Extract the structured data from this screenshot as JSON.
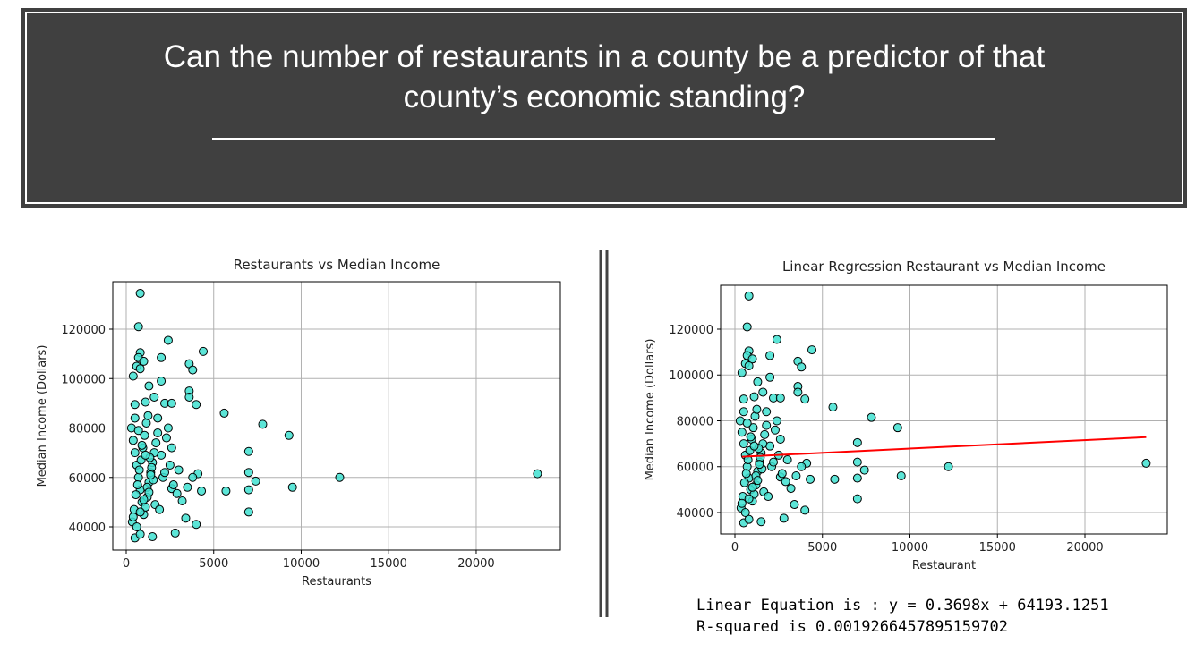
{
  "header": {
    "title": "Can the number of restaurants in a county be a predictor of that county’s economic standing?"
  },
  "chart_data": [
    {
      "type": "scatter",
      "title": "Restaurants vs Median Income",
      "x_label": "Restaurants",
      "y_label": "Median Income (Dollars)",
      "color": "#40e0d0",
      "edgecolor": "#000000",
      "grid": true,
      "xlim": [
        -767,
        24810
      ],
      "ylim": [
        30590,
        139190
      ],
      "xticks": [
        0,
        5000,
        10000,
        15000,
        20000
      ],
      "yticks": [
        40000,
        60000,
        80000,
        100000,
        120000
      ],
      "x": [
        800,
        700,
        2400,
        4400,
        800,
        700,
        1000,
        2000,
        3600,
        3800,
        600,
        800,
        400,
        1300,
        2000,
        3600,
        3600,
        1600,
        2200,
        2600,
        4000,
        1100,
        500,
        5600,
        7800,
        9300,
        7000,
        7000,
        7400,
        7000,
        7000,
        5700,
        9500,
        12200,
        23500,
        4300,
        4100,
        3800,
        4000,
        3400,
        2800,
        1500,
        500,
        800,
        3000,
        2600,
        2400,
        2300,
        1800,
        2000,
        2600,
        3200,
        3500,
        2900,
        300,
        400,
        500,
        600,
        700,
        800,
        900,
        1000,
        1100,
        1200,
        1300,
        1400,
        1500,
        1600,
        1700,
        1800,
        350,
        450,
        550,
        650,
        750,
        850,
        950,
        1050,
        1150,
        1250,
        1350,
        1450,
        1550,
        1650,
        400,
        600,
        800,
        1000,
        1200,
        1400,
        500,
        700,
        900,
        1100,
        1300,
        2100,
        2200,
        2500,
        2700,
        1900
      ],
      "values": [
        134500,
        121000,
        115500,
        111000,
        110500,
        108500,
        107000,
        108500,
        106000,
        103500,
        105000,
        104000,
        101000,
        97000,
        99000,
        95000,
        92500,
        92500,
        90000,
        90000,
        89500,
        90500,
        89500,
        86000,
        81500,
        77000,
        70500,
        62000,
        58500,
        55000,
        46000,
        54500,
        56000,
        60000,
        61500,
        54500,
        61500,
        60000,
        41000,
        43500,
        37500,
        36000,
        35500,
        37000,
        63000,
        72000,
        80000,
        76000,
        84000,
        69000,
        55500,
        50500,
        56000,
        53500,
        80000,
        75000,
        70000,
        65000,
        60000,
        55000,
        50000,
        45000,
        48000,
        52000,
        58000,
        62000,
        66000,
        70000,
        74000,
        78000,
        42000,
        47000,
        53000,
        57000,
        63000,
        67000,
        72000,
        77000,
        82000,
        85000,
        68000,
        64000,
        59000,
        49000,
        44000,
        40000,
        46000,
        51000,
        56000,
        61000,
        84000,
        79000,
        73000,
        69000,
        54000,
        60000,
        62000,
        65000,
        57000,
        47000
      ]
    },
    {
      "type": "scatter",
      "title": "Linear Regression Restaurant vs Median Income",
      "x_label": "Restaurant",
      "y_label": "Median Income (Dollars)",
      "color": "#40e0d0",
      "edgecolor": "#000000",
      "grid": true,
      "xlim": [
        -818,
        24706
      ],
      "ylim": [
        30634,
        139122
      ],
      "xticks": [
        0,
        5000,
        10000,
        15000,
        20000
      ],
      "yticks": [
        40000,
        60000,
        80000,
        100000,
        120000
      ],
      "x": [
        800,
        700,
        2400,
        4400,
        800,
        700,
        1000,
        2000,
        3600,
        3800,
        600,
        800,
        400,
        1300,
        2000,
        3600,
        3600,
        1600,
        2200,
        2600,
        4000,
        1100,
        500,
        5600,
        7800,
        9300,
        7000,
        7000,
        7400,
        7000,
        7000,
        5700,
        9500,
        12200,
        23500,
        4300,
        4100,
        3800,
        4000,
        3400,
        2800,
        1500,
        500,
        800,
        3000,
        2600,
        2400,
        2300,
        1800,
        2000,
        2600,
        3200,
        3500,
        2900,
        300,
        400,
        500,
        600,
        700,
        800,
        900,
        1000,
        1100,
        1200,
        1300,
        1400,
        1500,
        1600,
        1700,
        1800,
        350,
        450,
        550,
        650,
        750,
        850,
        950,
        1050,
        1150,
        1250,
        1350,
        1450,
        1550,
        1650,
        400,
        600,
        800,
        1000,
        1200,
        1400,
        500,
        700,
        900,
        1100,
        1300,
        2100,
        2200,
        2500,
        2700,
        1900
      ],
      "values": [
        134500,
        121000,
        115500,
        111000,
        110500,
        108500,
        107000,
        108500,
        106000,
        103500,
        105000,
        104000,
        101000,
        97000,
        99000,
        95000,
        92500,
        92500,
        90000,
        90000,
        89500,
        90500,
        89500,
        86000,
        81500,
        77000,
        70500,
        62000,
        58500,
        55000,
        46000,
        54500,
        56000,
        60000,
        61500,
        54500,
        61500,
        60000,
        41000,
        43500,
        37500,
        36000,
        35500,
        37000,
        63000,
        72000,
        80000,
        76000,
        84000,
        69000,
        55500,
        50500,
        56000,
        53500,
        80000,
        75000,
        70000,
        65000,
        60000,
        55000,
        50000,
        45000,
        48000,
        52000,
        58000,
        62000,
        66000,
        70000,
        74000,
        78000,
        42000,
        47000,
        53000,
        57000,
        63000,
        67000,
        72000,
        77000,
        82000,
        85000,
        68000,
        64000,
        59000,
        49000,
        44000,
        40000,
        46000,
        51000,
        56000,
        61000,
        84000,
        79000,
        73000,
        69000,
        54000,
        60000,
        62000,
        65000,
        57000,
        47000
      ],
      "fit": {
        "color": "#ff0000",
        "x": [
          400,
          23500
        ],
        "values": [
          64341,
          72883
        ]
      },
      "annotations": [
        "Linear Equation is : y = 0.3698x + 64193.1251",
        "R-squared is 0.0019266457895159702"
      ]
    }
  ]
}
